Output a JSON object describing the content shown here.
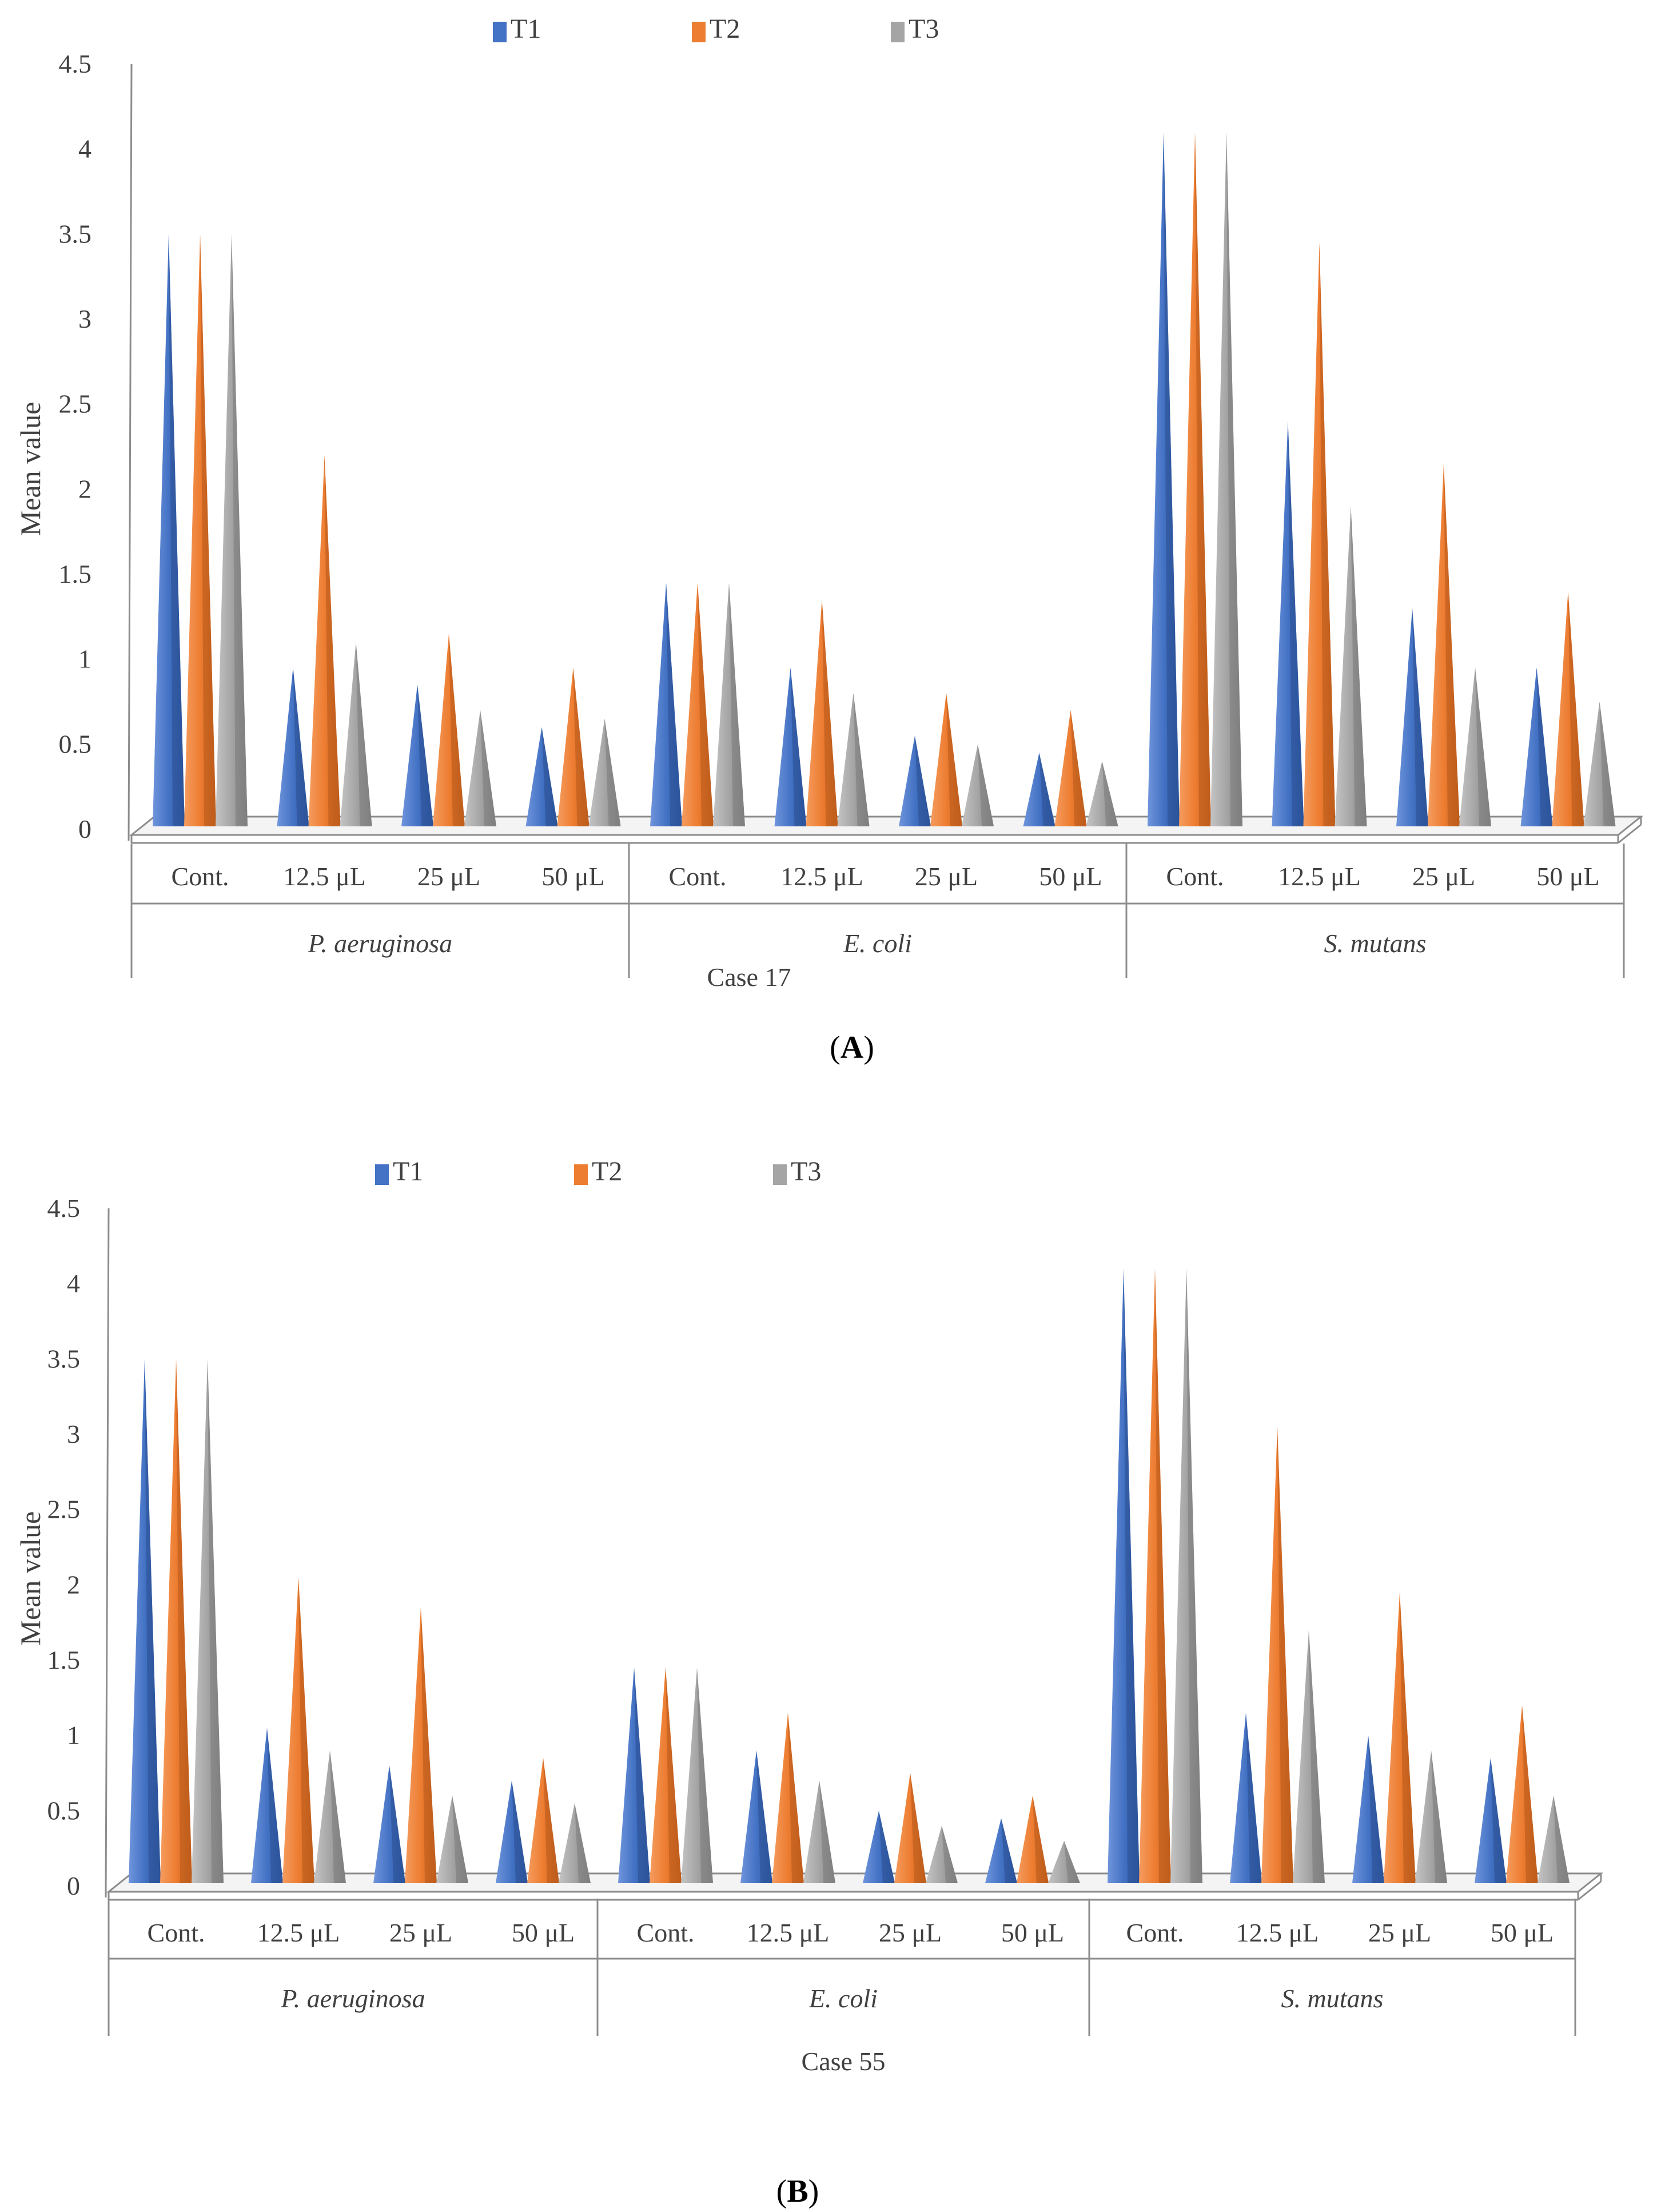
{
  "figure": {
    "caption_a": "(A)",
    "caption_a_letter": "A",
    "caption_b": "(B)",
    "caption_b_letter": "B"
  },
  "colors": {
    "T1": "#4472C4",
    "T2": "#ED7D31",
    "T3": "#A5A5A5",
    "axis": "#8c8c8c"
  },
  "chart_data": [
    {
      "type": "bar",
      "mark": "cone-3d",
      "title": "",
      "xlabel": "Case 17",
      "ylabel": "Mean value",
      "ylim": [
        0,
        4.5
      ],
      "yticks": [
        "0",
        "0.5",
        "1",
        "1.5",
        "2",
        "2.5",
        "3",
        "3.5",
        "4",
        "4.5"
      ],
      "legend_position": "top",
      "groups": [
        "P. aeruginosa",
        "E. coli",
        "S. mutans"
      ],
      "categories": [
        "Cont.",
        "12.5 μL",
        "25 μL",
        "50 μL",
        "Cont.",
        "12.5 μL",
        "25 μL",
        "50 μL",
        "Cont.",
        "12.5 μL",
        "25 μL",
        "50 μL"
      ],
      "series": [
        {
          "name": "T1",
          "values": [
            3.5,
            0.95,
            0.85,
            0.6,
            1.45,
            0.95,
            0.55,
            0.45,
            4.1,
            2.4,
            1.3,
            0.95
          ]
        },
        {
          "name": "T2",
          "values": [
            3.5,
            2.2,
            1.15,
            0.95,
            1.45,
            1.35,
            0.8,
            0.7,
            4.1,
            3.45,
            2.15,
            1.4
          ]
        },
        {
          "name": "T3",
          "values": [
            3.5,
            1.1,
            0.7,
            0.65,
            1.45,
            0.8,
            0.5,
            0.4,
            4.1,
            1.9,
            0.95,
            0.75
          ]
        }
      ]
    },
    {
      "type": "bar",
      "mark": "cone-3d",
      "title": "",
      "xlabel": "Case 55",
      "ylabel": "Mean value",
      "ylim": [
        0,
        4.5
      ],
      "yticks": [
        "0",
        "0.5",
        "1",
        "1.5",
        "2",
        "2.5",
        "3",
        "3.5",
        "4",
        "4.5"
      ],
      "legend_position": "top",
      "groups": [
        "P. aeruginosa",
        "E. coli",
        "S. mutans"
      ],
      "categories": [
        "Cont.",
        "12.5 μL",
        "25 μL",
        "50 μL",
        "Cont.",
        "12.5 μL",
        "25 μL",
        "50 μL",
        "Cont.",
        "12.5 μL",
        "25 μL",
        "50 μL"
      ],
      "series": [
        {
          "name": "T1",
          "values": [
            3.5,
            1.05,
            0.8,
            0.7,
            1.45,
            0.9,
            0.5,
            0.45,
            4.1,
            1.15,
            1.0,
            0.85
          ]
        },
        {
          "name": "T2",
          "values": [
            3.5,
            2.05,
            1.85,
            0.85,
            1.45,
            1.15,
            0.75,
            0.6,
            4.1,
            3.05,
            1.95,
            1.2
          ]
        },
        {
          "name": "T3",
          "values": [
            3.5,
            0.9,
            0.6,
            0.55,
            1.45,
            0.7,
            0.4,
            0.3,
            4.1,
            1.7,
            0.9,
            0.6
          ]
        }
      ]
    }
  ]
}
